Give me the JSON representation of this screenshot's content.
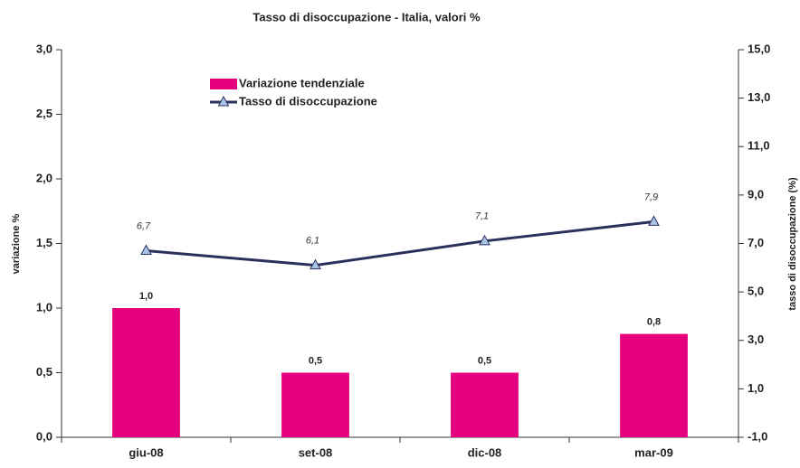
{
  "chart_data": {
    "type": "bar",
    "title": "Tasso di disoccupazione - Italia, valori %",
    "y_label": "variazione %",
    "y2_label": "tasso di disoccupazione (%)",
    "categories": [
      "giu-08",
      "set-08",
      "dic-08",
      "mar-09"
    ],
    "series": [
      {
        "name": "Variazione tendenziale",
        "type": "bar",
        "color": "#e6007e",
        "values": [
          1.0,
          0.5,
          0.5,
          0.8
        ],
        "value_labels": [
          "1,0",
          "0,5",
          "0,5",
          "0,8"
        ]
      },
      {
        "name": "Tasso di disoccupazione",
        "type": "line",
        "axis": "y2",
        "color": "#2b2f5e",
        "marker_color": "#a9c6e6",
        "values": [
          6.7,
          6.1,
          7.1,
          7.9
        ],
        "value_labels": [
          "6,7",
          "6,1",
          "7,1",
          "7,9"
        ]
      }
    ],
    "ylim": [
      0,
      3
    ],
    "yticks": [
      {
        "value": 0,
        "label": "0,0"
      },
      {
        "value": 0.5,
        "label": "0,5"
      },
      {
        "value": 1,
        "label": "1,0"
      },
      {
        "value": 1.5,
        "label": "1,5"
      },
      {
        "value": 2,
        "label": "2,0"
      },
      {
        "value": 2.5,
        "label": "2,5"
      },
      {
        "value": 3,
        "label": "3,0"
      }
    ],
    "y2lim": [
      -1,
      15
    ],
    "y2ticks": [
      {
        "value": -1,
        "label": "-1,0"
      },
      {
        "value": 1,
        "label": "1,0"
      },
      {
        "value": 3,
        "label": "3,0"
      },
      {
        "value": 5,
        "label": "5,0"
      },
      {
        "value": 7,
        "label": "7,0"
      },
      {
        "value": 9,
        "label": "9,0"
      },
      {
        "value": 11,
        "label": "11,0"
      },
      {
        "value": 13,
        "label": "13,0"
      },
      {
        "value": 15,
        "label": "15,0"
      }
    ]
  }
}
